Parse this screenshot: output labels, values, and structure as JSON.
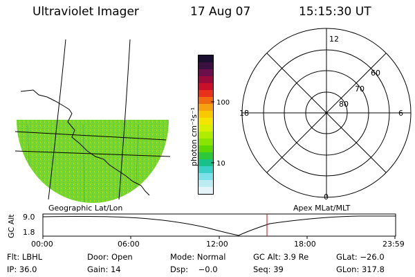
{
  "header": {
    "instrument": "Ultraviolet Imager",
    "date": "17 Aug 07",
    "time": "15:15:30 UT"
  },
  "colorbar": {
    "label": "photon cm⁻²s⁻¹",
    "ticks": [
      "100",
      "10"
    ],
    "colors": [
      "#1a0f2e",
      "#3a1040",
      "#6a0f4a",
      "#9a0a3a",
      "#c8102a",
      "#e8301a",
      "#f06a10",
      "#f7a010",
      "#f8c800",
      "#f4e400",
      "#d8f000",
      "#b0ec00",
      "#88e400",
      "#5cd800",
      "#2cc83a",
      "#18c08a",
      "#3ad0c8",
      "#7ce0e8",
      "#bcecf2",
      "#e4f4f8"
    ]
  },
  "geo_map": {
    "label": "Geographic Lat/Lon",
    "fill_color": "#78d82a"
  },
  "polar_plot": {
    "label": "Apex MLat/MLT",
    "mlt_labels": [
      "12",
      "18",
      "6",
      "0"
    ],
    "lat_labels": [
      "60",
      "70",
      "80"
    ]
  },
  "orbit_plot": {
    "ylabel": "GC Alt",
    "y_ticks": [
      "9.0",
      "1.8"
    ],
    "x_ticks": [
      "00:00",
      "06:00",
      "12:00",
      "18:00",
      "23:59"
    ],
    "current_marker_color": "#e00000"
  },
  "status": {
    "row1": {
      "filter": "Flt: LBHL",
      "door": "Door: Open",
      "mode": "Mode: Normal",
      "gc_alt": "GC Alt: 3.9 Re",
      "glat": "GLat: −26.0"
    },
    "row2": {
      "ip": "IP: 36.0",
      "gain": "Gain: 14",
      "dsp": "Dsp:    −0.0",
      "seq": "Seq: 39",
      "glon": "GLon: 317.8"
    }
  }
}
